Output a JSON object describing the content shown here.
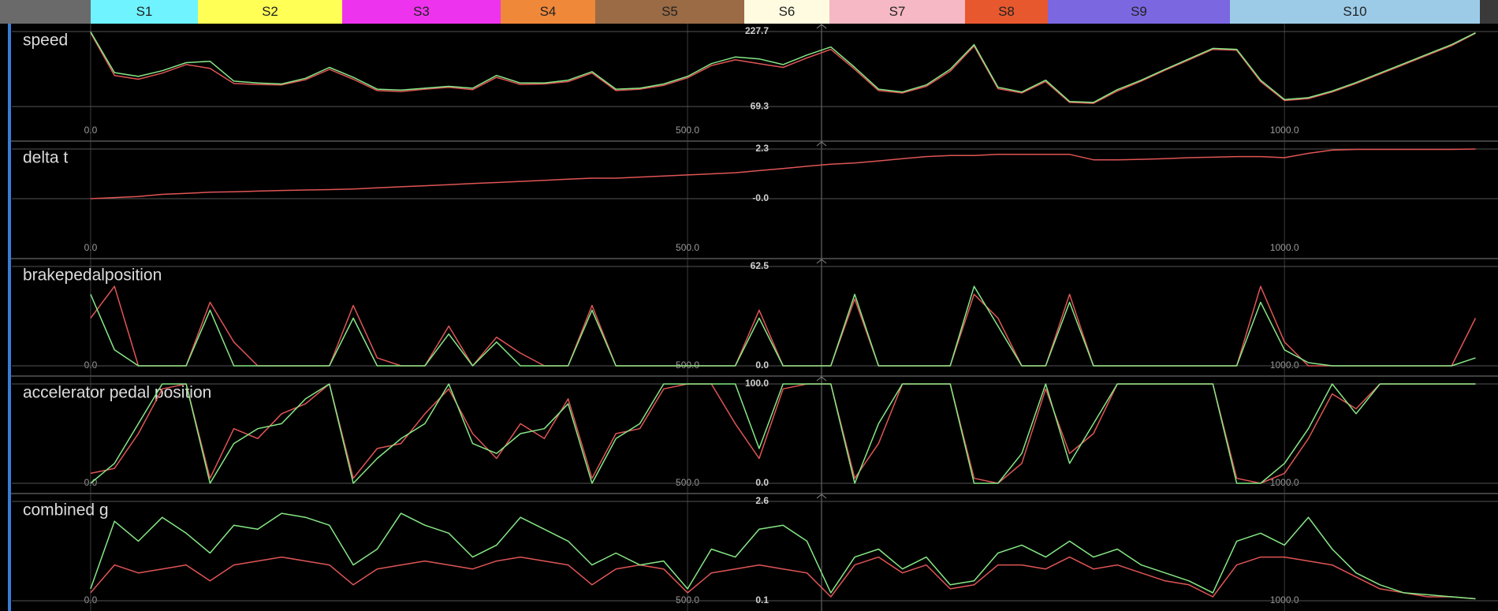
{
  "sectors": [
    {
      "name": "S1",
      "color": "#6ef3ff"
    },
    {
      "name": "S2",
      "color": "#ffff55"
    },
    {
      "name": "S3",
      "color": "#ee33ee"
    },
    {
      "name": "S4",
      "color": "#f0883a"
    },
    {
      "name": "S5",
      "color": "#9a6b45"
    },
    {
      "name": "S6",
      "color": "#fffbe0"
    },
    {
      "name": "S7",
      "color": "#f5b8c4"
    },
    {
      "name": "S8",
      "color": "#e8582e"
    },
    {
      "name": "S9",
      "color": "#7b67e0"
    },
    {
      "name": "S10",
      "color": "#9ccbe8"
    }
  ],
  "chart_data": [
    {
      "type": "line",
      "title": "speed",
      "grid": true,
      "x": [
        0,
        20,
        40,
        60,
        80,
        100,
        120,
        140,
        160,
        180,
        200,
        220,
        240,
        260,
        280,
        300,
        320,
        340,
        360,
        380,
        400,
        420,
        440,
        460,
        480,
        500,
        520,
        540,
        560,
        580,
        600,
        620,
        640,
        660,
        680,
        700,
        720,
        740,
        760,
        780,
        800,
        820,
        840,
        860,
        880,
        900,
        920,
        940,
        960,
        980,
        1000,
        1020,
        1040,
        1060,
        1080,
        1100,
        1120,
        1140,
        1160
      ],
      "xlim": [
        -66,
        1163
      ],
      "xticks": [
        {
          "value": 0,
          "label": "0.0"
        },
        {
          "value": 500,
          "label": "500.0"
        },
        {
          "value": 1000,
          "label": "1000.0"
        }
      ],
      "ylim": [
        17.9,
        227.7
      ],
      "yticks": [
        227.7,
        69.3
      ],
      "series": [
        {
          "color": "#e05555",
          "values": [
            225,
            135,
            127,
            140,
            158,
            150,
            118,
            116,
            115,
            126,
            148,
            127,
            103,
            101,
            106,
            110,
            105,
            131,
            116,
            117,
            122,
            140,
            103,
            106,
            114,
            130,
            156,
            168,
            160,
            152,
            172,
            190,
            148,
            103,
            98,
            112,
            144,
            197,
            107,
            98,
            122,
            78,
            76,
            102,
            123,
            146,
            168,
            190,
            188,
            122,
            82,
            86,
            100,
            118,
            138,
            158,
            178,
            198,
            224
          ]
        },
        {
          "color": "#86e886",
          "values": [
            227,
            141,
            133,
            145,
            162,
            165,
            123,
            119,
            117,
            129,
            152,
            131,
            106,
            104,
            108,
            112,
            108,
            135,
            119,
            119,
            125,
            143,
            106,
            108,
            117,
            133,
            160,
            174,
            170,
            158,
            178,
            195,
            152,
            106,
            100,
            115,
            148,
            200,
            110,
            100,
            125,
            80,
            78,
            105,
            125,
            148,
            170,
            192,
            190,
            125,
            84,
            88,
            102,
            120,
            140,
            160,
            180,
            200,
            225
          ]
        }
      ]
    },
    {
      "type": "line",
      "title": "delta t",
      "grid": true,
      "x": [
        0,
        20,
        40,
        60,
        80,
        100,
        120,
        140,
        160,
        180,
        200,
        220,
        240,
        260,
        280,
        300,
        320,
        340,
        360,
        380,
        400,
        420,
        440,
        460,
        480,
        500,
        520,
        540,
        560,
        580,
        600,
        620,
        640,
        660,
        680,
        700,
        720,
        740,
        760,
        780,
        800,
        820,
        840,
        860,
        880,
        900,
        920,
        940,
        960,
        980,
        1000,
        1020,
        1040,
        1060,
        1080,
        1100,
        1120,
        1140,
        1160
      ],
      "xlim": [
        -66,
        1163
      ],
      "xticks": [
        {
          "value": 0,
          "label": "0.0"
        },
        {
          "value": 500,
          "label": "500.0"
        },
        {
          "value": 1000,
          "label": "1000.0"
        }
      ],
      "ylim": [
        -2.3,
        2.3
      ],
      "yticks": [
        2.3,
        {
          "value": 0,
          "label": "-0.0"
        }
      ],
      "series": [
        {
          "color": "#e05555",
          "values": [
            0,
            0.05,
            0.1,
            0.2,
            0.25,
            0.3,
            0.32,
            0.35,
            0.38,
            0.4,
            0.42,
            0.45,
            0.5,
            0.55,
            0.6,
            0.65,
            0.7,
            0.75,
            0.8,
            0.85,
            0.9,
            0.95,
            0.95,
            1.0,
            1.05,
            1.1,
            1.15,
            1.2,
            1.3,
            1.4,
            1.5,
            1.6,
            1.65,
            1.75,
            1.85,
            1.95,
            2.0,
            2.0,
            2.05,
            2.05,
            2.05,
            2.05,
            1.8,
            1.8,
            1.82,
            1.85,
            1.9,
            1.92,
            1.95,
            1.95,
            1.9,
            2.1,
            2.25,
            2.28,
            2.28,
            2.28,
            2.28,
            2.28,
            2.3
          ]
        }
      ]
    },
    {
      "type": "line",
      "title": "brakepedalposition",
      "grid": true,
      "x": [
        0,
        20,
        40,
        60,
        80,
        100,
        120,
        140,
        160,
        180,
        200,
        220,
        240,
        260,
        280,
        300,
        320,
        340,
        360,
        380,
        400,
        420,
        440,
        460,
        480,
        500,
        520,
        540,
        560,
        580,
        600,
        620,
        640,
        660,
        680,
        700,
        720,
        740,
        760,
        780,
        800,
        820,
        840,
        860,
        880,
        900,
        920,
        940,
        960,
        980,
        1000,
        1020,
        1040,
        1060,
        1080,
        1100,
        1120,
        1140,
        1160
      ],
      "xlim": [
        -66,
        1163
      ],
      "xticks": [
        {
          "value": 0,
          "label": "0.0"
        },
        {
          "value": 500,
          "label": "500.0"
        },
        {
          "value": 1000,
          "label": "1000.0"
        }
      ],
      "ylim": [
        0,
        62.5
      ],
      "yticks": [
        62.5,
        {
          "value": 0,
          "label": "0.0"
        }
      ],
      "series": [
        {
          "color": "#e05555",
          "values": [
            30,
            50,
            0,
            0,
            0,
            40,
            15,
            0,
            0,
            0,
            0,
            38,
            5,
            0,
            0,
            25,
            0,
            18,
            8,
            0,
            0,
            38,
            0,
            0,
            0,
            0,
            0,
            0,
            35,
            0,
            0,
            0,
            42,
            0,
            0,
            0,
            0,
            45,
            30,
            0,
            0,
            45,
            0,
            0,
            0,
            0,
            0,
            0,
            0,
            50,
            15,
            0,
            0,
            0,
            0,
            0,
            0,
            0,
            30
          ]
        },
        {
          "color": "#86e886",
          "values": [
            45,
            10,
            0,
            0,
            0,
            35,
            0,
            0,
            0,
            0,
            0,
            30,
            0,
            0,
            0,
            20,
            0,
            15,
            0,
            0,
            0,
            35,
            0,
            0,
            0,
            0,
            0,
            0,
            30,
            0,
            0,
            0,
            45,
            0,
            0,
            0,
            0,
            50,
            25,
            0,
            0,
            40,
            0,
            0,
            0,
            0,
            0,
            0,
            0,
            40,
            10,
            2,
            0,
            0,
            0,
            0,
            0,
            0,
            5
          ]
        }
      ]
    },
    {
      "type": "line",
      "title": "accelerator pedal position",
      "grid": true,
      "x": [
        0,
        20,
        40,
        60,
        80,
        100,
        120,
        140,
        160,
        180,
        200,
        220,
        240,
        260,
        280,
        300,
        320,
        340,
        360,
        380,
        400,
        420,
        440,
        460,
        480,
        500,
        520,
        540,
        560,
        580,
        600,
        620,
        640,
        660,
        680,
        700,
        720,
        740,
        760,
        780,
        800,
        820,
        840,
        860,
        880,
        900,
        920,
        940,
        960,
        980,
        1000,
        1020,
        1040,
        1060,
        1080,
        1100,
        1120,
        1140,
        1160
      ],
      "xlim": [
        -66,
        1163
      ],
      "xticks": [
        {
          "value": 0,
          "label": "0.0"
        },
        {
          "value": 500,
          "label": "500.0"
        },
        {
          "value": 1000,
          "label": "1000.0"
        }
      ],
      "ylim": [
        0,
        100
      ],
      "yticks": [
        {
          "value": 100,
          "label": "100.0"
        },
        {
          "value": 0,
          "label": "0.0"
        }
      ],
      "series": [
        {
          "color": "#e05555",
          "values": [
            10,
            15,
            50,
            95,
            100,
            5,
            55,
            45,
            70,
            80,
            100,
            5,
            35,
            40,
            70,
            95,
            50,
            25,
            60,
            45,
            85,
            5,
            50,
            55,
            95,
            100,
            100,
            60,
            25,
            95,
            100,
            100,
            5,
            40,
            100,
            100,
            100,
            5,
            0,
            20,
            95,
            30,
            50,
            100,
            100,
            100,
            100,
            100,
            5,
            0,
            10,
            45,
            90,
            75,
            100,
            100,
            100,
            100,
            100
          ]
        },
        {
          "color": "#86e886",
          "values": [
            0,
            20,
            60,
            100,
            100,
            0,
            40,
            55,
            60,
            85,
            100,
            0,
            25,
            45,
            60,
            100,
            40,
            30,
            50,
            55,
            80,
            0,
            45,
            60,
            100,
            100,
            100,
            100,
            35,
            100,
            100,
            100,
            0,
            60,
            100,
            100,
            100,
            0,
            0,
            30,
            100,
            20,
            60,
            100,
            100,
            100,
            100,
            100,
            0,
            0,
            20,
            55,
            100,
            70,
            100,
            100,
            100,
            100,
            100
          ]
        }
      ]
    },
    {
      "type": "line",
      "title": "combined g",
      "grid": true,
      "x": [
        0,
        20,
        40,
        60,
        80,
        100,
        120,
        140,
        160,
        180,
        200,
        220,
        240,
        260,
        280,
        300,
        320,
        340,
        360,
        380,
        400,
        420,
        440,
        460,
        480,
        500,
        520,
        540,
        560,
        580,
        600,
        620,
        640,
        660,
        680,
        700,
        720,
        740,
        760,
        780,
        800,
        820,
        840,
        860,
        880,
        900,
        920,
        940,
        960,
        980,
        1000,
        1020,
        1040,
        1060,
        1080,
        1100,
        1120,
        1140,
        1160
      ],
      "xlim": [
        -66,
        1163
      ],
      "xticks": [
        {
          "value": 0,
          "label": "0.0"
        },
        {
          "value": 500,
          "label": "500.0"
        },
        {
          "value": 1000,
          "label": "1000.0"
        }
      ],
      "ylim": [
        0.1,
        2.6
      ],
      "yticks": [
        2.6,
        0.1
      ],
      "series": [
        {
          "color": "#e05555",
          "values": [
            0.3,
            1.0,
            0.8,
            0.9,
            1.0,
            0.6,
            1.0,
            1.1,
            1.2,
            1.1,
            1.0,
            0.5,
            0.9,
            1.0,
            1.1,
            1.0,
            0.9,
            1.1,
            1.2,
            1.1,
            1.0,
            0.5,
            0.9,
            1.0,
            0.9,
            0.3,
            0.8,
            0.9,
            1.0,
            0.9,
            0.8,
            0.2,
            1.0,
            1.2,
            0.8,
            1.0,
            0.4,
            0.5,
            1.0,
            1.0,
            0.9,
            1.2,
            0.9,
            1.0,
            0.8,
            0.6,
            0.5,
            0.2,
            1.0,
            1.2,
            1.2,
            1.1,
            1.0,
            0.7,
            0.4,
            0.3,
            0.2,
            0.2,
            0.15
          ]
        },
        {
          "color": "#86e886",
          "values": [
            0.4,
            2.1,
            1.6,
            2.2,
            1.8,
            1.3,
            2.0,
            1.9,
            2.3,
            2.2,
            2.0,
            1.0,
            1.4,
            2.3,
            2.0,
            1.8,
            1.2,
            1.5,
            2.2,
            1.9,
            1.6,
            1.0,
            1.3,
            1.0,
            1.1,
            0.4,
            1.4,
            1.2,
            1.9,
            2.0,
            1.6,
            0.3,
            1.2,
            1.4,
            0.9,
            1.2,
            0.5,
            0.6,
            1.3,
            1.5,
            1.2,
            1.6,
            1.2,
            1.4,
            1.0,
            0.8,
            0.6,
            0.3,
            1.6,
            1.8,
            1.5,
            2.2,
            1.4,
            0.8,
            0.5,
            0.3,
            0.25,
            0.2,
            0.15
          ]
        }
      ]
    }
  ]
}
